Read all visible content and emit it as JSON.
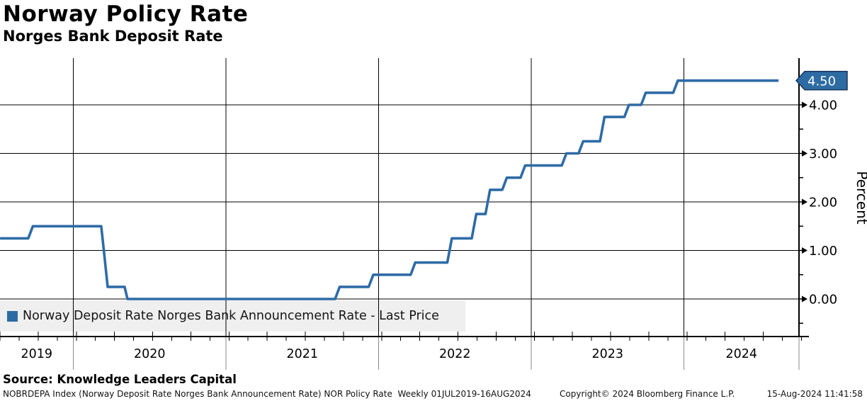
{
  "header": {
    "title": "Norway Policy Rate",
    "subtitle": "Norges Bank Deposit Rate"
  },
  "legend": {
    "label": "Norway Deposit Rate Norges Bank Announcement Rate - Last Price",
    "marker_color": "#2d6ba3",
    "background_color": "#efefef"
  },
  "chart_data": {
    "type": "line",
    "step": true,
    "title": "Norway Policy Rate",
    "subtitle": "Norges Bank Deposit Rate",
    "ylabel": "Percent",
    "xlabel": "",
    "grid": true,
    "x_domain": [
      2019.52,
      2024.754
    ],
    "x_ticks": [
      2019,
      2020,
      2021,
      2022,
      2023,
      2024
    ],
    "y_ticks": [
      {
        "value": 0,
        "label": "0.00"
      },
      {
        "value": 1,
        "label": "1.00"
      },
      {
        "value": 2,
        "label": "2.00"
      },
      {
        "value": 3,
        "label": "3.00"
      },
      {
        "value": 4,
        "label": "4.00"
      }
    ],
    "y_minor_ticks": [
      -0.5,
      0.5,
      1.5,
      2.5,
      3.5
    ],
    "ylim": [
      -0.77,
      4.96
    ],
    "last_price": {
      "label": "4.50",
      "value": 4.5
    },
    "series": [
      {
        "name": "Norway Deposit Rate Norges Bank Announcement Rate - Last Price",
        "color": "#2e6ba6",
        "points": [
          [
            2019.52,
            1.25
          ],
          [
            2019.705,
            1.25
          ],
          [
            2019.735,
            1.5
          ],
          [
            2020.183,
            1.5
          ],
          [
            2020.2,
            1.0
          ],
          [
            2020.225,
            0.25
          ],
          [
            2020.336,
            0.25
          ],
          [
            2020.355,
            0.0
          ],
          [
            2021.715,
            0.0
          ],
          [
            2021.745,
            0.25
          ],
          [
            2021.935,
            0.25
          ],
          [
            2021.965,
            0.5
          ],
          [
            2022.21,
            0.5
          ],
          [
            2022.24,
            0.75
          ],
          [
            2022.45,
            0.75
          ],
          [
            2022.48,
            1.25
          ],
          [
            2022.61,
            1.25
          ],
          [
            2022.64,
            1.75
          ],
          [
            2022.7,
            1.75
          ],
          [
            2022.73,
            2.25
          ],
          [
            2022.81,
            2.25
          ],
          [
            2022.84,
            2.5
          ],
          [
            2022.93,
            2.5
          ],
          [
            2022.96,
            2.75
          ],
          [
            2023.2,
            2.75
          ],
          [
            2023.23,
            3.0
          ],
          [
            2023.31,
            3.0
          ],
          [
            2023.34,
            3.25
          ],
          [
            2023.45,
            3.25
          ],
          [
            2023.48,
            3.75
          ],
          [
            2023.61,
            3.75
          ],
          [
            2023.64,
            4.0
          ],
          [
            2023.72,
            4.0
          ],
          [
            2023.75,
            4.25
          ],
          [
            2023.93,
            4.25
          ],
          [
            2023.96,
            4.5
          ],
          [
            2024.62,
            4.5
          ]
        ]
      }
    ],
    "colors": {
      "line": "#2e6ba6",
      "badge_fill": "#2d6ba3",
      "badge_border": "#16365c",
      "badge_text": "#ffffff",
      "grid": "#000000",
      "year_separator": "#8a8a8a",
      "legend_background": "#efefef"
    }
  },
  "footer": {
    "source": "Source: Knowledge Leaders Capital",
    "meta": "NOBRDEPA Index (Norway Deposit Rate Norges Bank Announcement Rate) NOR Policy Rate  Weekly 01JUL2019-16AUG2024",
    "copyright": "Copyright© 2024 Bloomberg Finance L.P.",
    "timestamp": "15-Aug-2024 11:41:58"
  }
}
